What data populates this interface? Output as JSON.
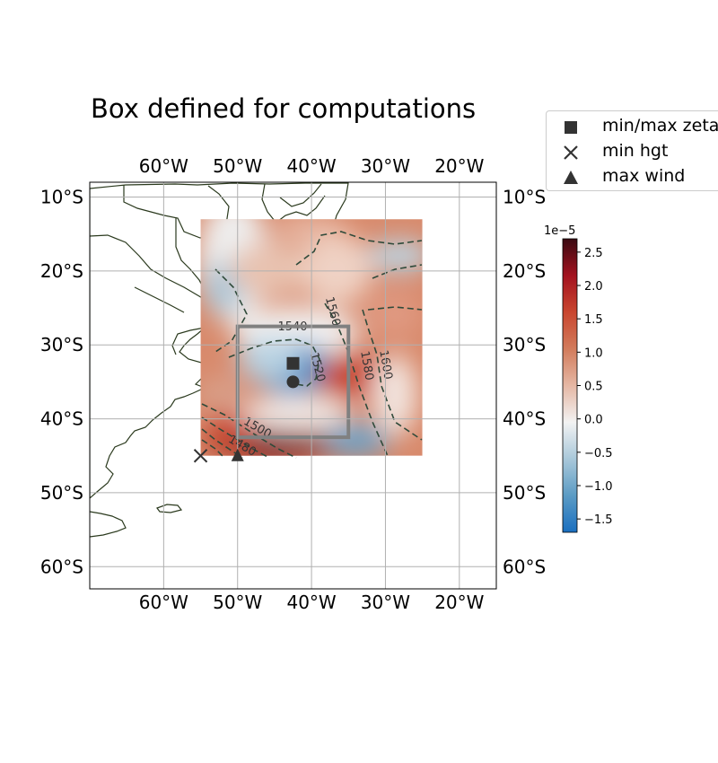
{
  "title": "Box defined for computations",
  "map": {
    "lon_range": [
      -70,
      -15
    ],
    "lat_range": [
      -63,
      -8
    ],
    "lon_ticks": [
      -60,
      -50,
      -40,
      -30,
      -20
    ],
    "lon_tick_labels": [
      "60°W",
      "50°W",
      "40°W",
      "30°W",
      "20°W"
    ],
    "lat_ticks": [
      -10,
      -20,
      -30,
      -40,
      -50,
      -60
    ],
    "lat_tick_labels": [
      "10°S",
      "20°S",
      "30°S",
      "40°S",
      "50°S",
      "60°S"
    ],
    "grid": true
  },
  "field": {
    "lon_range": [
      -55,
      -25
    ],
    "lat_range": [
      -45,
      -13
    ]
  },
  "computation_box": {
    "lon": [
      -50,
      -35
    ],
    "lat": [
      -42.5,
      -27.5
    ],
    "color": "#808080"
  },
  "contour_labels": [
    "1540",
    "1560",
    "1520",
    "1580",
    "1600",
    "1500",
    "1480"
  ],
  "markers": [
    {
      "name": "min/max zeta",
      "shape": "square",
      "lon": -42.5,
      "lat": -32.5
    },
    {
      "name": "min/max zeta",
      "shape": "circle",
      "lon": -42.5,
      "lat": -35
    },
    {
      "name": "min hgt",
      "shape": "x",
      "lon": -55,
      "lat": -45
    },
    {
      "name": "max wind",
      "shape": "triangle",
      "lon": -50,
      "lat": -45
    }
  ],
  "legend": {
    "items": [
      {
        "label": "min/max zeta",
        "shape": "square"
      },
      {
        "label": "min hgt",
        "shape": "x"
      },
      {
        "label": "max wind",
        "shape": "triangle"
      }
    ]
  },
  "colorbar": {
    "exponent_label": "1e−5",
    "range": [
      -1.7,
      2.7
    ],
    "ticks": [
      2.5,
      2.0,
      1.5,
      1.0,
      0.5,
      0.0,
      -0.5,
      -1.0,
      -1.5
    ],
    "tick_labels": [
      "2.5",
      "2.0",
      "1.5",
      "1.0",
      "0.5",
      "0.0",
      "−0.5",
      "−1.0",
      "−1.5"
    ],
    "colors": [
      "#1a6fc0",
      "#5b9bc4",
      "#a9c8da",
      "#f2f2f2",
      "#e5b7a4",
      "#d27b5b",
      "#c9462f",
      "#a3121f",
      "#3a0a12"
    ]
  },
  "colors": {
    "coast": "#2b3a1e",
    "grid": "#b0b0b0",
    "marker": "#333333"
  }
}
